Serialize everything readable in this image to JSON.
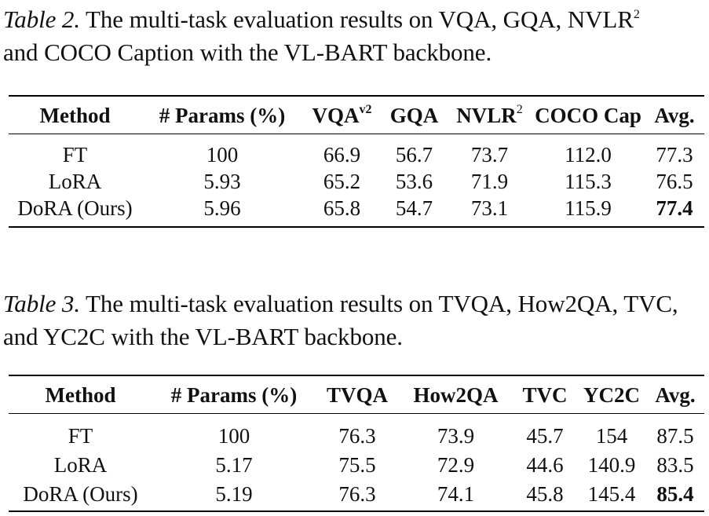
{
  "table2": {
    "caption_label": "Table 2.",
    "caption_text_line1": " The multi-task evaluation results on VQA, GQA, NVLR",
    "caption_sup": "2",
    "caption_text_line2": "and COCO Caption with the VL-BART backbone.",
    "headers": {
      "method": "Method",
      "params": "# Params (%)",
      "vqa": "VQA",
      "vqa_sup": "v2",
      "gqa": "GQA",
      "nvlr": "NVLR",
      "nvlr_sup": "2",
      "coco": "COCO Cap",
      "avg": "Avg."
    },
    "rows": [
      {
        "method": "FT",
        "params": "100",
        "vqa": "66.9",
        "gqa": "56.7",
        "nvlr": "73.7",
        "coco": "112.0",
        "avg": "77.3"
      },
      {
        "method": "LoRA",
        "params": "5.93",
        "vqa": "65.2",
        "gqa": "53.6",
        "nvlr": "71.9",
        "coco": "115.3",
        "avg": "76.5"
      },
      {
        "method": "DoRA (Ours)",
        "params": "5.96",
        "vqa": "65.8",
        "gqa": "54.7",
        "nvlr": "73.1",
        "coco": "115.9",
        "avg": "77.4"
      }
    ]
  },
  "table3": {
    "caption_label": "Table 3.",
    "caption_text": " The multi-task evaluation results on TVQA, How2QA, TVC, and YC2C with the VL-BART backbone.",
    "headers": {
      "method": "Method",
      "params": "# Params (%)",
      "tvqa": "TVQA",
      "how2qa": "How2QA",
      "tvc": "TVC",
      "yc2c": "YC2C",
      "avg": "Avg."
    },
    "rows": [
      {
        "method": "FT",
        "params": "100",
        "tvqa": "76.3",
        "how2qa": "73.9",
        "tvc": "45.7",
        "yc2c": "154",
        "avg": "87.5"
      },
      {
        "method": "LoRA",
        "params": "5.17",
        "tvqa": "75.5",
        "how2qa": "72.9",
        "tvc": "44.6",
        "yc2c": "140.9",
        "avg": "83.5"
      },
      {
        "method": "DoRA (Ours)",
        "params": "5.19",
        "tvqa": "76.3",
        "how2qa": "74.1",
        "tvc": "45.8",
        "yc2c": "145.4",
        "avg": "85.4"
      }
    ]
  }
}
